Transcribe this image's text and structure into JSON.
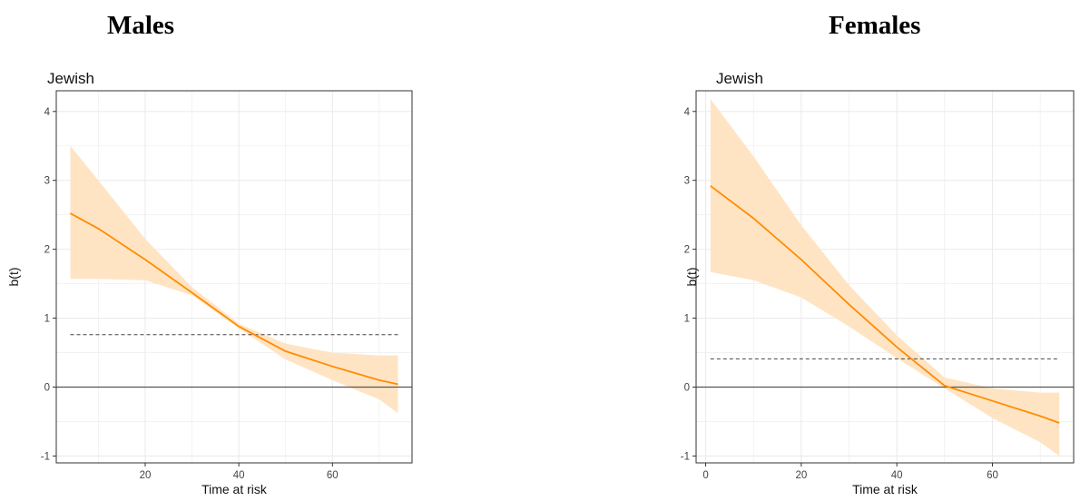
{
  "headers": {
    "left": "Males",
    "right": "Females"
  },
  "colors": {
    "line": "#ff8c00",
    "band": "#ffe4c4",
    "grid": "#ebebeb",
    "zero_line": "#555555",
    "dashed": "#444444",
    "border": "#333333"
  },
  "chart_data": [
    {
      "type": "line",
      "title": "Jewish",
      "xlabel": "Time at risk",
      "ylabel": "b(t)",
      "xlim": [
        1,
        77
      ],
      "ylim": [
        -1.1,
        4.3
      ],
      "xticks": [
        20,
        40,
        60
      ],
      "yticks": [
        -1,
        0,
        1,
        2,
        3,
        4
      ],
      "grid": true,
      "hline_solid": 0,
      "hline_dashed": 0.76,
      "series": [
        {
          "x": [
            4,
            10,
            20,
            30,
            40,
            50,
            60,
            70,
            74
          ],
          "y": [
            2.52,
            2.3,
            1.85,
            1.37,
            0.88,
            0.52,
            0.3,
            0.1,
            0.04
          ],
          "lower": [
            1.57,
            1.57,
            1.55,
            1.33,
            0.85,
            0.4,
            0.1,
            -0.18,
            -0.38
          ],
          "upper": [
            3.5,
            3.0,
            2.15,
            1.45,
            0.92,
            0.63,
            0.5,
            0.46,
            0.46
          ]
        }
      ]
    },
    {
      "type": "line",
      "title": "Jewish",
      "xlabel": "Time at risk",
      "ylabel": "b(t)",
      "xlim": [
        -2,
        77
      ],
      "ylim": [
        -1.1,
        4.3
      ],
      "xticks": [
        0,
        20,
        40,
        60
      ],
      "yticks": [
        -1,
        0,
        1,
        2,
        3,
        4
      ],
      "grid": true,
      "hline_solid": 0,
      "hline_dashed": 0.41,
      "series": [
        {
          "x": [
            1,
            10,
            20,
            30,
            40,
            50,
            60,
            70,
            74
          ],
          "y": [
            2.92,
            2.45,
            1.85,
            1.2,
            0.58,
            0.02,
            -0.2,
            -0.42,
            -0.52
          ],
          "lower": [
            1.67,
            1.55,
            1.3,
            0.88,
            0.42,
            -0.02,
            -0.45,
            -0.8,
            -1.0
          ],
          "upper": [
            4.18,
            3.35,
            2.35,
            1.48,
            0.75,
            0.14,
            -0.02,
            -0.08,
            -0.08
          ]
        }
      ]
    }
  ]
}
